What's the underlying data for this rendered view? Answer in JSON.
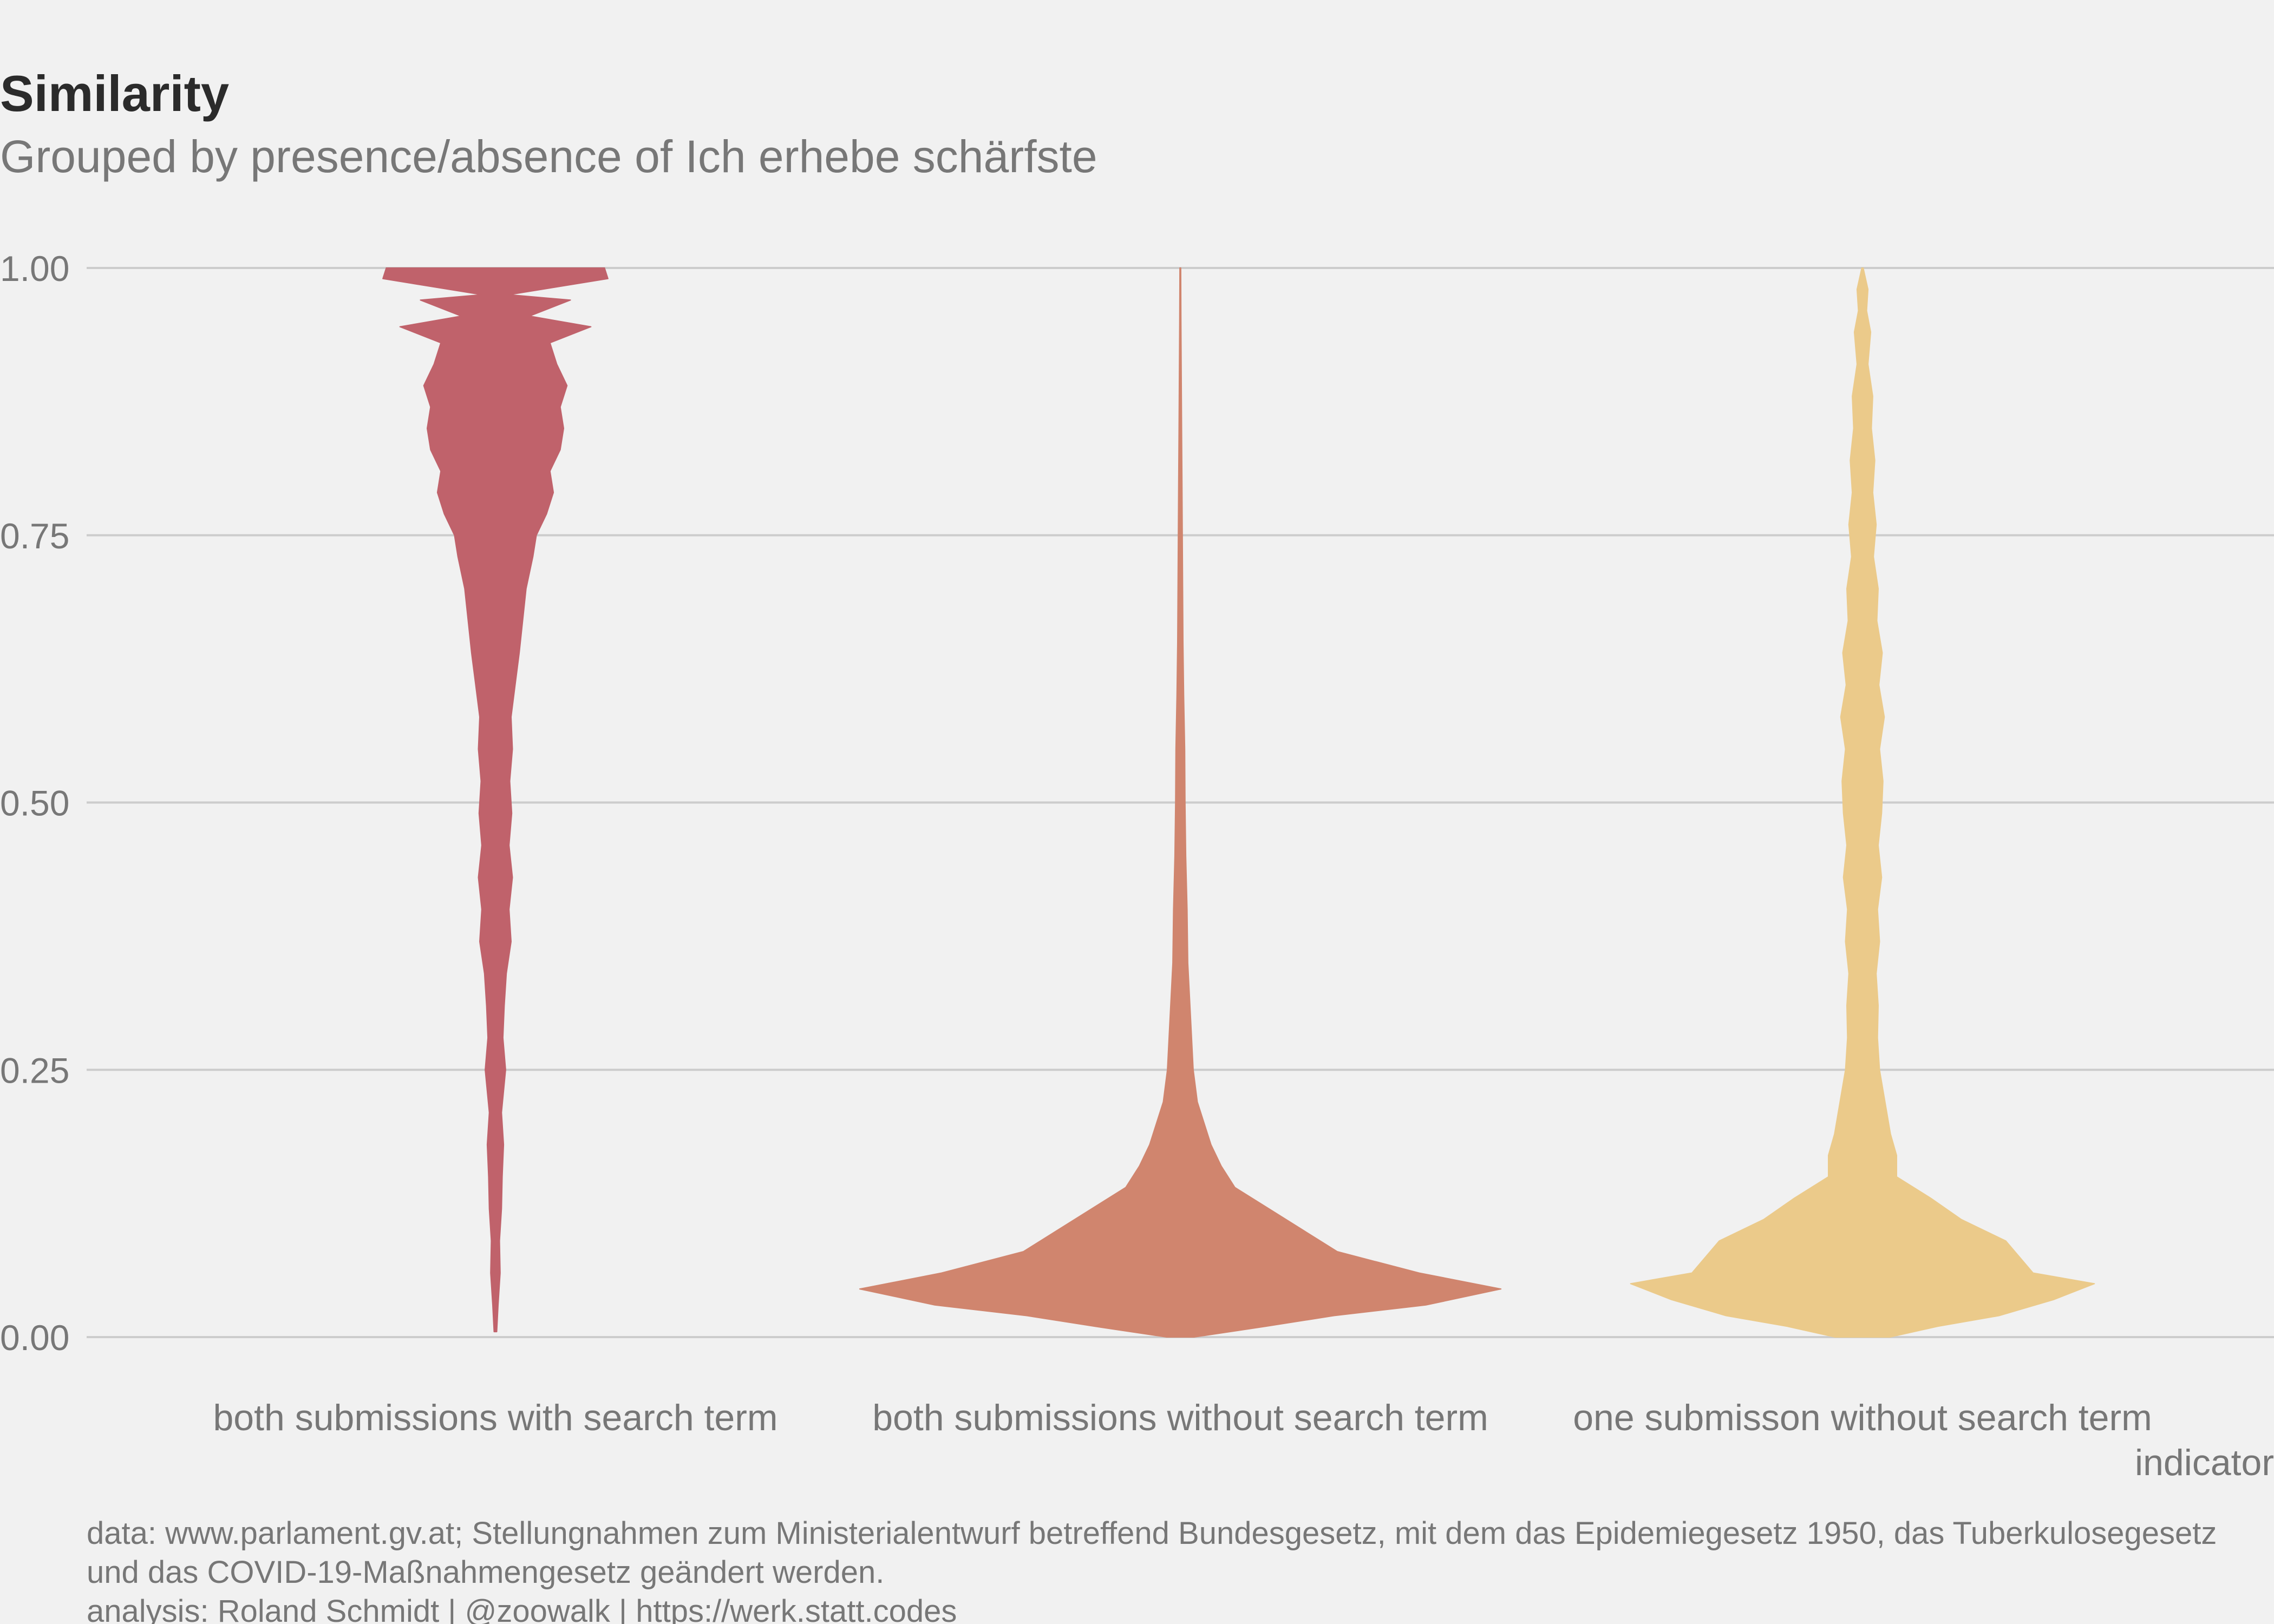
{
  "chart_data": {
    "type": "violin",
    "title": "Similarity",
    "subtitle": "Grouped by presence/absence of Ich erhebe schärfste",
    "xlabel": "indicator",
    "ylabel": "",
    "ylim": [
      0,
      1
    ],
    "yticks": [
      "0.00",
      "0.25",
      "0.50",
      "0.75",
      "1.00"
    ],
    "ytick_values": [
      0,
      0.25,
      0.5,
      0.75,
      1.0
    ],
    "grid": true,
    "legend": "none",
    "categories": [
      "both submissions with search term",
      "both submissions without search term",
      "one submisson without search term"
    ],
    "series": [
      {
        "category": "both submissions with search term",
        "color": "#c0626b",
        "profile": [
          [
            0.005,
            0.004
          ],
          [
            0.03,
            0.008
          ],
          [
            0.06,
            0.014
          ],
          [
            0.09,
            0.012
          ],
          [
            0.12,
            0.018
          ],
          [
            0.15,
            0.02
          ],
          [
            0.18,
            0.024
          ],
          [
            0.21,
            0.018
          ],
          [
            0.25,
            0.03
          ],
          [
            0.28,
            0.022
          ],
          [
            0.31,
            0.026
          ],
          [
            0.34,
            0.032
          ],
          [
            0.37,
            0.046
          ],
          [
            0.4,
            0.04
          ],
          [
            0.43,
            0.05
          ],
          [
            0.46,
            0.04
          ],
          [
            0.49,
            0.048
          ],
          [
            0.52,
            0.042
          ],
          [
            0.55,
            0.05
          ],
          [
            0.58,
            0.046
          ],
          [
            0.61,
            0.058
          ],
          [
            0.64,
            0.07
          ],
          [
            0.67,
            0.08
          ],
          [
            0.7,
            0.09
          ],
          [
            0.73,
            0.11
          ],
          [
            0.75,
            0.12
          ],
          [
            0.77,
            0.15
          ],
          [
            0.79,
            0.17
          ],
          [
            0.81,
            0.16
          ],
          [
            0.83,
            0.19
          ],
          [
            0.85,
            0.2
          ],
          [
            0.87,
            0.19
          ],
          [
            0.89,
            0.21
          ],
          [
            0.91,
            0.18
          ],
          [
            0.93,
            0.16
          ],
          [
            0.945,
            0.28
          ],
          [
            0.955,
            0.1
          ],
          [
            0.97,
            0.22
          ],
          [
            0.975,
            0.04
          ],
          [
            0.99,
            0.33
          ],
          [
            1.0,
            0.32
          ]
        ]
      },
      {
        "category": "both submissions without search term",
        "color": "#d0856e",
        "profile": [
          [
            0.0,
            0.04
          ],
          [
            0.01,
            0.25
          ],
          [
            0.02,
            0.45
          ],
          [
            0.03,
            0.72
          ],
          [
            0.045,
            0.94
          ],
          [
            0.06,
            0.7
          ],
          [
            0.08,
            0.46
          ],
          [
            0.1,
            0.36
          ],
          [
            0.12,
            0.26
          ],
          [
            0.14,
            0.16
          ],
          [
            0.16,
            0.12
          ],
          [
            0.18,
            0.09
          ],
          [
            0.2,
            0.07
          ],
          [
            0.22,
            0.05
          ],
          [
            0.25,
            0.038
          ],
          [
            0.3,
            0.03
          ],
          [
            0.35,
            0.022
          ],
          [
            0.4,
            0.02
          ],
          [
            0.45,
            0.016
          ],
          [
            0.5,
            0.014
          ],
          [
            0.55,
            0.013
          ],
          [
            0.6,
            0.01
          ],
          [
            0.65,
            0.008
          ],
          [
            0.7,
            0.007
          ],
          [
            0.75,
            0.006
          ],
          [
            0.8,
            0.005
          ],
          [
            0.85,
            0.004
          ],
          [
            0.9,
            0.003
          ],
          [
            0.95,
            0.002
          ],
          [
            1.0,
            0.0015
          ]
        ]
      },
      {
        "category": "one submisson without search term",
        "color": "#ebca8a",
        "profile": [
          [
            0.0,
            0.08
          ],
          [
            0.01,
            0.22
          ],
          [
            0.02,
            0.4
          ],
          [
            0.035,
            0.56
          ],
          [
            0.05,
            0.68
          ],
          [
            0.06,
            0.5
          ],
          [
            0.09,
            0.42
          ],
          [
            0.11,
            0.29
          ],
          [
            0.13,
            0.2
          ],
          [
            0.15,
            0.1
          ],
          [
            0.17,
            0.1
          ],
          [
            0.19,
            0.082
          ],
          [
            0.22,
            0.066
          ],
          [
            0.25,
            0.05
          ],
          [
            0.28,
            0.044
          ],
          [
            0.31,
            0.046
          ],
          [
            0.34,
            0.04
          ],
          [
            0.37,
            0.05
          ],
          [
            0.4,
            0.044
          ],
          [
            0.43,
            0.056
          ],
          [
            0.46,
            0.046
          ],
          [
            0.49,
            0.056
          ],
          [
            0.52,
            0.06
          ],
          [
            0.55,
            0.05
          ],
          [
            0.58,
            0.064
          ],
          [
            0.61,
            0.048
          ],
          [
            0.64,
            0.058
          ],
          [
            0.67,
            0.042
          ],
          [
            0.7,
            0.046
          ],
          [
            0.73,
            0.032
          ],
          [
            0.76,
            0.04
          ],
          [
            0.79,
            0.03
          ],
          [
            0.82,
            0.036
          ],
          [
            0.85,
            0.026
          ],
          [
            0.88,
            0.03
          ],
          [
            0.91,
            0.016
          ],
          [
            0.94,
            0.024
          ],
          [
            0.96,
            0.012
          ],
          [
            0.98,
            0.016
          ],
          [
            1.0,
            0.002
          ]
        ]
      }
    ]
  },
  "caption": {
    "line1": "data: www.parlament.gv.at; Stellungnahmen zum Ministerialentwurf betreffend Bundesgesetz, mit dem das Epidemiegesetz 1950, das Tuberkulosegesetz",
    "line2": "und das COVID-19-Maßnahmengesetz geändert werden.",
    "line3": "analysis: Roland Schmidt | @zoowalk | https://werk.statt.codes"
  }
}
